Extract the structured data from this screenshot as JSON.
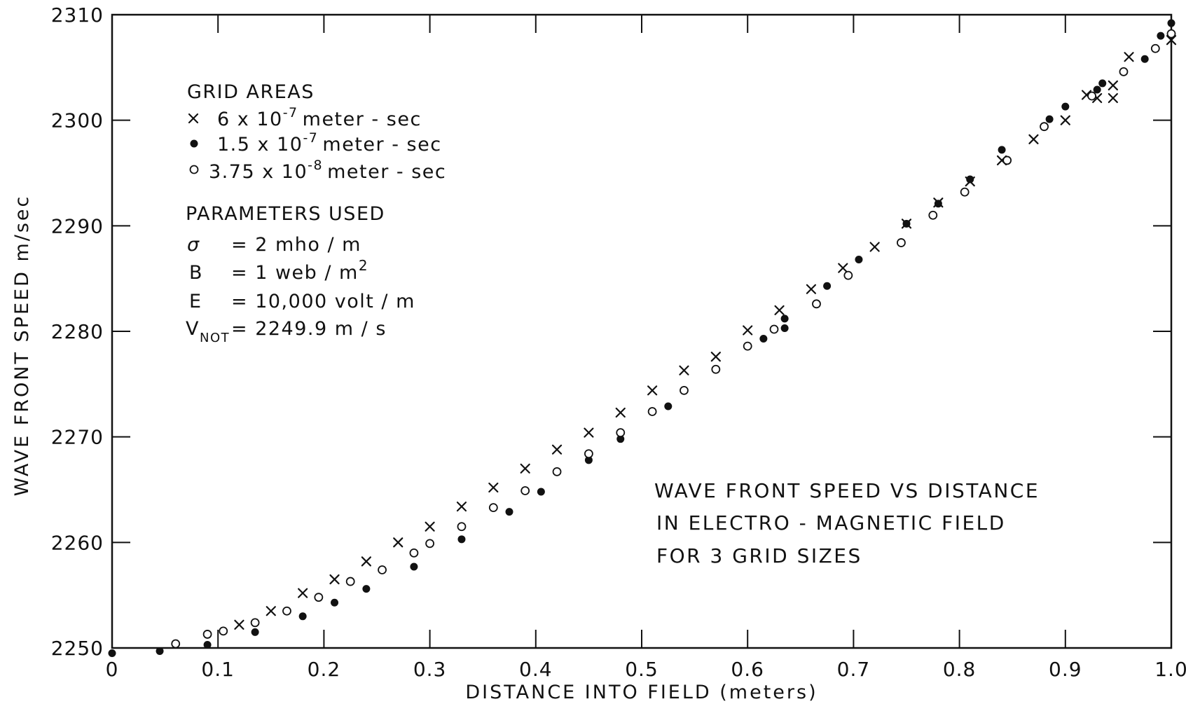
{
  "chart_data": {
    "type": "scatter",
    "xlabel": "DISTANCE INTO FIELD (meters)",
    "ylabel": "WAVE FRONT SPEED m/sec",
    "xlim": [
      0,
      1.0
    ],
    "ylim": [
      2250,
      2310
    ],
    "x_ticks": [
      0,
      0.1,
      0.2,
      0.3,
      0.4,
      0.5,
      0.6,
      0.7,
      0.8,
      0.9,
      1.0
    ],
    "x_tick_labels": [
      "0",
      "0.1",
      "0.2",
      "0.3",
      "0.4",
      "0.5",
      "0.6",
      "0.7",
      "0.8",
      "0.9",
      "1.0"
    ],
    "y_ticks": [
      2250,
      2260,
      2270,
      2280,
      2290,
      2300,
      2310
    ],
    "y_tick_labels": [
      "2250",
      "2260",
      "2270",
      "2280",
      "2290",
      "2300",
      "2310"
    ],
    "grid": false,
    "legend": {
      "title": "GRID AREAS",
      "placement": "top-left",
      "entries": [
        {
          "symbol": "x",
          "base": "6 x 10",
          "exp": "-7",
          "unit": "meter - sec"
        },
        {
          "symbol": "●",
          "base": "1.5 x 10",
          "exp": "-7",
          "unit": "meter - sec"
        },
        {
          "symbol": "○",
          "base": "3.75 x 10",
          "exp": "-8",
          "unit": "meter - sec"
        }
      ]
    },
    "parameters": {
      "title": "PARAMETERS USED",
      "sigma": {
        "name": "σ",
        "value": "= 2 mho / m"
      },
      "b": {
        "name": "B",
        "value_base": "= 1 web / m",
        "value_exp": "2"
      },
      "e": {
        "name": "E",
        "value": "= 10,000 volt / m"
      },
      "vnot": {
        "name": "V",
        "sub": "NOT",
        "value": "= 2249.9 m / s"
      }
    },
    "annotation_lines": [
      "WAVE FRONT SPEED VS DISTANCE",
      "IN ELECTRO - MAGNETIC FIELD",
      "FOR 3 GRID SIZES"
    ],
    "series": [
      {
        "marker": "x",
        "points": [
          [
            0.12,
            2252.2
          ],
          [
            0.15,
            2253.5
          ],
          [
            0.18,
            2255.2
          ],
          [
            0.21,
            2256.5
          ],
          [
            0.24,
            2258.2
          ],
          [
            0.27,
            2260.0
          ],
          [
            0.3,
            2261.5
          ],
          [
            0.33,
            2263.4
          ],
          [
            0.36,
            2265.2
          ],
          [
            0.39,
            2267.0
          ],
          [
            0.42,
            2268.8
          ],
          [
            0.45,
            2270.4
          ],
          [
            0.48,
            2272.3
          ],
          [
            0.51,
            2274.4
          ],
          [
            0.54,
            2276.3
          ],
          [
            0.57,
            2277.6
          ],
          [
            0.6,
            2280.1
          ],
          [
            0.63,
            2282.0
          ],
          [
            0.66,
            2284.0
          ],
          [
            0.69,
            2286.0
          ],
          [
            0.72,
            2288.0
          ],
          [
            0.75,
            2290.2
          ],
          [
            0.78,
            2292.2
          ],
          [
            0.81,
            2294.2
          ],
          [
            0.84,
            2296.2
          ],
          [
            0.87,
            2298.2
          ],
          [
            0.9,
            2300.0
          ],
          [
            0.92,
            2302.4
          ],
          [
            0.93,
            2302.1
          ],
          [
            0.945,
            2303.3
          ],
          [
            0.945,
            2302.1
          ],
          [
            0.96,
            2306.0
          ],
          [
            1.0,
            2307.6
          ]
        ]
      },
      {
        "marker": "dot",
        "points": [
          [
            0.0,
            2249.5
          ],
          [
            0.045,
            2249.7
          ],
          [
            0.09,
            2250.3
          ],
          [
            0.135,
            2251.5
          ],
          [
            0.18,
            2253.0
          ],
          [
            0.21,
            2254.3
          ],
          [
            0.24,
            2255.6
          ],
          [
            0.285,
            2257.7
          ],
          [
            0.33,
            2260.3
          ],
          [
            0.375,
            2262.9
          ],
          [
            0.405,
            2264.8
          ],
          [
            0.45,
            2267.8
          ],
          [
            0.48,
            2269.8
          ],
          [
            0.525,
            2272.9
          ],
          [
            0.615,
            2279.3
          ],
          [
            0.635,
            2280.3
          ],
          [
            0.635,
            2281.2
          ],
          [
            0.675,
            2284.3
          ],
          [
            0.705,
            2286.8
          ],
          [
            0.75,
            2290.2
          ],
          [
            0.78,
            2292.1
          ],
          [
            0.81,
            2294.4
          ],
          [
            0.84,
            2297.2
          ],
          [
            0.885,
            2300.1
          ],
          [
            0.9,
            2301.3
          ],
          [
            0.93,
            2302.9
          ],
          [
            0.935,
            2303.5
          ],
          [
            0.975,
            2305.8
          ],
          [
            0.99,
            2308.0
          ],
          [
            1.0,
            2309.2
          ]
        ]
      },
      {
        "marker": "circle",
        "points": [
          [
            0.06,
            2250.4
          ],
          [
            0.09,
            2251.3
          ],
          [
            0.105,
            2251.6
          ],
          [
            0.135,
            2252.4
          ],
          [
            0.165,
            2253.5
          ],
          [
            0.195,
            2254.8
          ],
          [
            0.225,
            2256.3
          ],
          [
            0.255,
            2257.4
          ],
          [
            0.285,
            2259.0
          ],
          [
            0.3,
            2259.9
          ],
          [
            0.33,
            2261.5
          ],
          [
            0.36,
            2263.3
          ],
          [
            0.39,
            2264.9
          ],
          [
            0.42,
            2266.7
          ],
          [
            0.45,
            2268.4
          ],
          [
            0.48,
            2270.4
          ],
          [
            0.51,
            2272.4
          ],
          [
            0.54,
            2274.4
          ],
          [
            0.57,
            2276.4
          ],
          [
            0.6,
            2278.6
          ],
          [
            0.625,
            2280.2
          ],
          [
            0.665,
            2282.6
          ],
          [
            0.695,
            2285.3
          ],
          [
            0.745,
            2288.4
          ],
          [
            0.775,
            2291.0
          ],
          [
            0.805,
            2293.2
          ],
          [
            0.845,
            2296.2
          ],
          [
            0.88,
            2299.4
          ],
          [
            0.925,
            2302.3
          ],
          [
            0.955,
            2304.6
          ],
          [
            0.985,
            2306.8
          ],
          [
            1.0,
            2308.2
          ]
        ]
      }
    ]
  }
}
